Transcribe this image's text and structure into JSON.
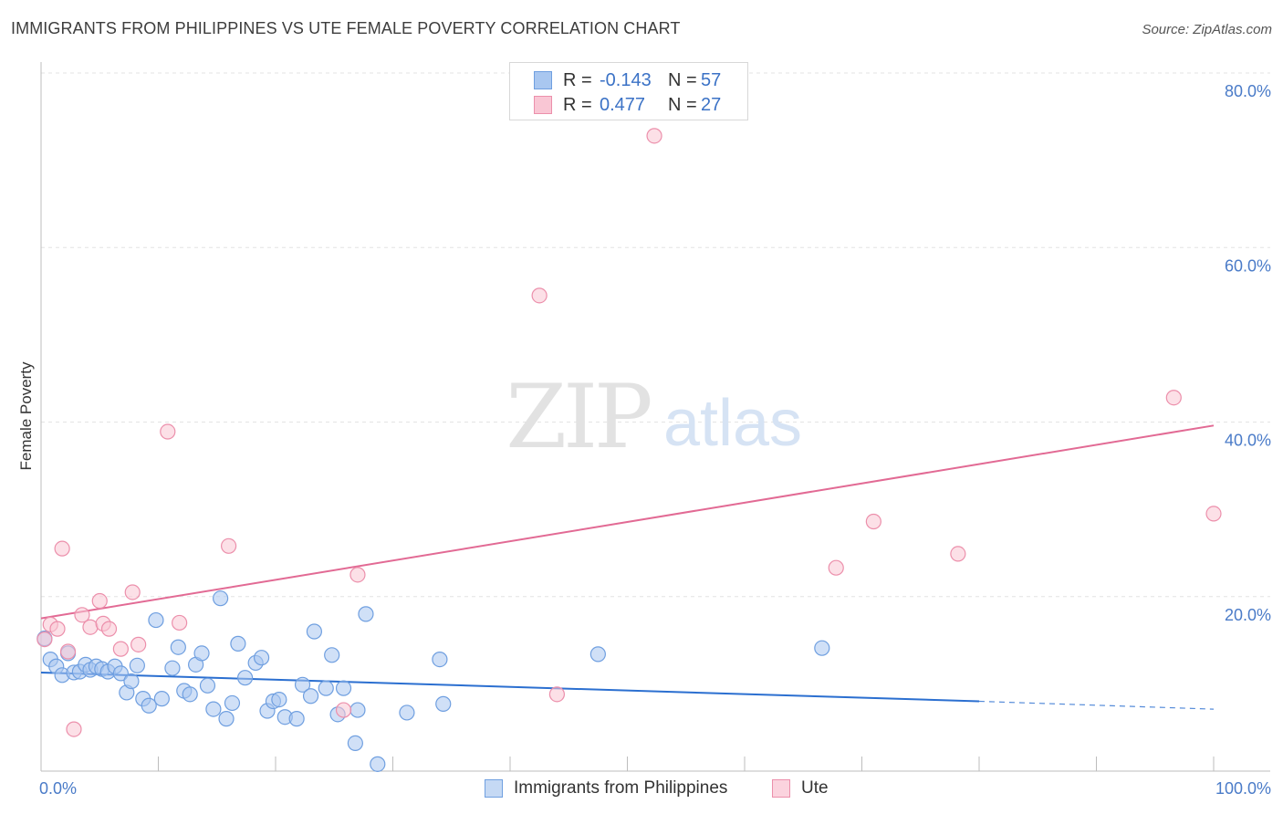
{
  "title": "IMMIGRANTS FROM PHILIPPINES VS UTE FEMALE POVERTY CORRELATION CHART",
  "source": "Source: ZipAtlas.com",
  "watermark": {
    "zip": "ZIP",
    "atlas": "atlas"
  },
  "legend": {
    "rows": [
      {
        "r_label": "R =",
        "r_value": "-0.143",
        "n_label": "N =",
        "n_value": "57",
        "color": "#a9c7f0",
        "border": "#6f9fe0"
      },
      {
        "r_label": "R =",
        "r_value": "0.477",
        "n_label": "N =",
        "n_value": "27",
        "color": "#f9c6d4",
        "border": "#ec8fab"
      }
    ]
  },
  "bottom_legend": [
    {
      "label": "Immigrants from Philippines",
      "color": "#c5d9f4",
      "border": "#6f9fe0"
    },
    {
      "label": "Ute",
      "color": "#fbd3de",
      "border": "#ec8fab"
    }
  ],
  "chart_data": {
    "type": "scatter",
    "title": "IMMIGRANTS FROM PHILIPPINES VS UTE FEMALE POVERTY CORRELATION CHART",
    "xlabel": "",
    "ylabel": "Female Poverty",
    "xlim": [
      0,
      100
    ],
    "ylim": [
      0,
      80
    ],
    "x_tick_labels": [
      "0.0%",
      "100.0%"
    ],
    "y_ticks": [
      20,
      40,
      60,
      80
    ],
    "y_tick_labels": [
      "20.0%",
      "40.0%",
      "60.0%",
      "80.0%"
    ],
    "grid": true,
    "legend_placement": "top-center",
    "series": [
      {
        "name": "Immigrants from Philippines",
        "color": "#6f9fe0",
        "fill": "#a9c7f0",
        "trend": {
          "x0": 0,
          "y0": 11.3,
          "x1": 80,
          "y1": 8.0,
          "dash_to_x": 100,
          "dash_to_y": 7.1,
          "color": "#2b6fd0"
        },
        "points": [
          [
            0.3,
            15.2
          ],
          [
            0.8,
            12.8
          ],
          [
            1.3,
            12.0
          ],
          [
            1.8,
            11.0
          ],
          [
            2.3,
            13.5
          ],
          [
            2.8,
            11.3
          ],
          [
            3.3,
            11.4
          ],
          [
            3.8,
            12.2
          ],
          [
            4.2,
            11.6
          ],
          [
            4.7,
            12.0
          ],
          [
            5.2,
            11.7
          ],
          [
            5.7,
            11.4
          ],
          [
            6.3,
            12.0
          ],
          [
            6.8,
            11.2
          ],
          [
            7.3,
            9.0
          ],
          [
            7.7,
            10.3
          ],
          [
            8.2,
            12.1
          ],
          [
            8.7,
            8.3
          ],
          [
            9.2,
            7.5
          ],
          [
            9.8,
            17.3
          ],
          [
            10.3,
            8.3
          ],
          [
            11.2,
            11.8
          ],
          [
            11.7,
            14.2
          ],
          [
            12.2,
            9.2
          ],
          [
            12.7,
            8.8
          ],
          [
            13.2,
            12.2
          ],
          [
            13.7,
            13.5
          ],
          [
            14.2,
            9.8
          ],
          [
            14.7,
            7.1
          ],
          [
            15.3,
            19.8
          ],
          [
            15.8,
            6.0
          ],
          [
            16.3,
            7.8
          ],
          [
            16.8,
            14.6
          ],
          [
            17.4,
            10.7
          ],
          [
            18.3,
            12.4
          ],
          [
            18.8,
            13.0
          ],
          [
            19.3,
            6.9
          ],
          [
            19.8,
            8.0
          ],
          [
            20.3,
            8.2
          ],
          [
            20.8,
            6.2
          ],
          [
            21.8,
            6.0
          ],
          [
            22.3,
            9.9
          ],
          [
            23.0,
            8.6
          ],
          [
            23.3,
            16.0
          ],
          [
            24.3,
            9.5
          ],
          [
            24.8,
            13.3
          ],
          [
            25.3,
            6.5
          ],
          [
            25.8,
            9.5
          ],
          [
            27.0,
            7.0
          ],
          [
            26.8,
            3.2
          ],
          [
            27.7,
            18.0
          ],
          [
            28.7,
            0.8
          ],
          [
            31.2,
            6.7
          ],
          [
            34.0,
            12.8
          ],
          [
            34.3,
            7.7
          ],
          [
            47.5,
            13.4
          ],
          [
            66.6,
            14.1
          ]
        ]
      },
      {
        "name": "Ute",
        "color": "#ec8fab",
        "fill": "#f9c6d4",
        "trend": {
          "x0": 0,
          "y0": 17.5,
          "x1": 100,
          "y1": 39.6,
          "color": "#e26a94"
        },
        "points": [
          [
            0.3,
            15.1
          ],
          [
            0.8,
            16.8
          ],
          [
            1.4,
            16.3
          ],
          [
            1.8,
            25.5
          ],
          [
            2.3,
            13.7
          ],
          [
            2.8,
            4.8
          ],
          [
            3.5,
            17.9
          ],
          [
            4.2,
            16.5
          ],
          [
            5.0,
            19.5
          ],
          [
            5.3,
            16.9
          ],
          [
            5.8,
            16.3
          ],
          [
            6.8,
            14.0
          ],
          [
            7.8,
            20.5
          ],
          [
            8.3,
            14.5
          ],
          [
            10.8,
            38.9
          ],
          [
            11.8,
            17.0
          ],
          [
            16.0,
            25.8
          ],
          [
            25.8,
            7.0
          ],
          [
            27.0,
            22.5
          ],
          [
            42.5,
            54.5
          ],
          [
            44.0,
            8.8
          ],
          [
            52.3,
            72.8
          ],
          [
            67.8,
            23.3
          ],
          [
            71.0,
            28.6
          ],
          [
            78.2,
            24.9
          ],
          [
            96.6,
            42.8
          ],
          [
            100.0,
            29.5
          ]
        ]
      }
    ]
  }
}
